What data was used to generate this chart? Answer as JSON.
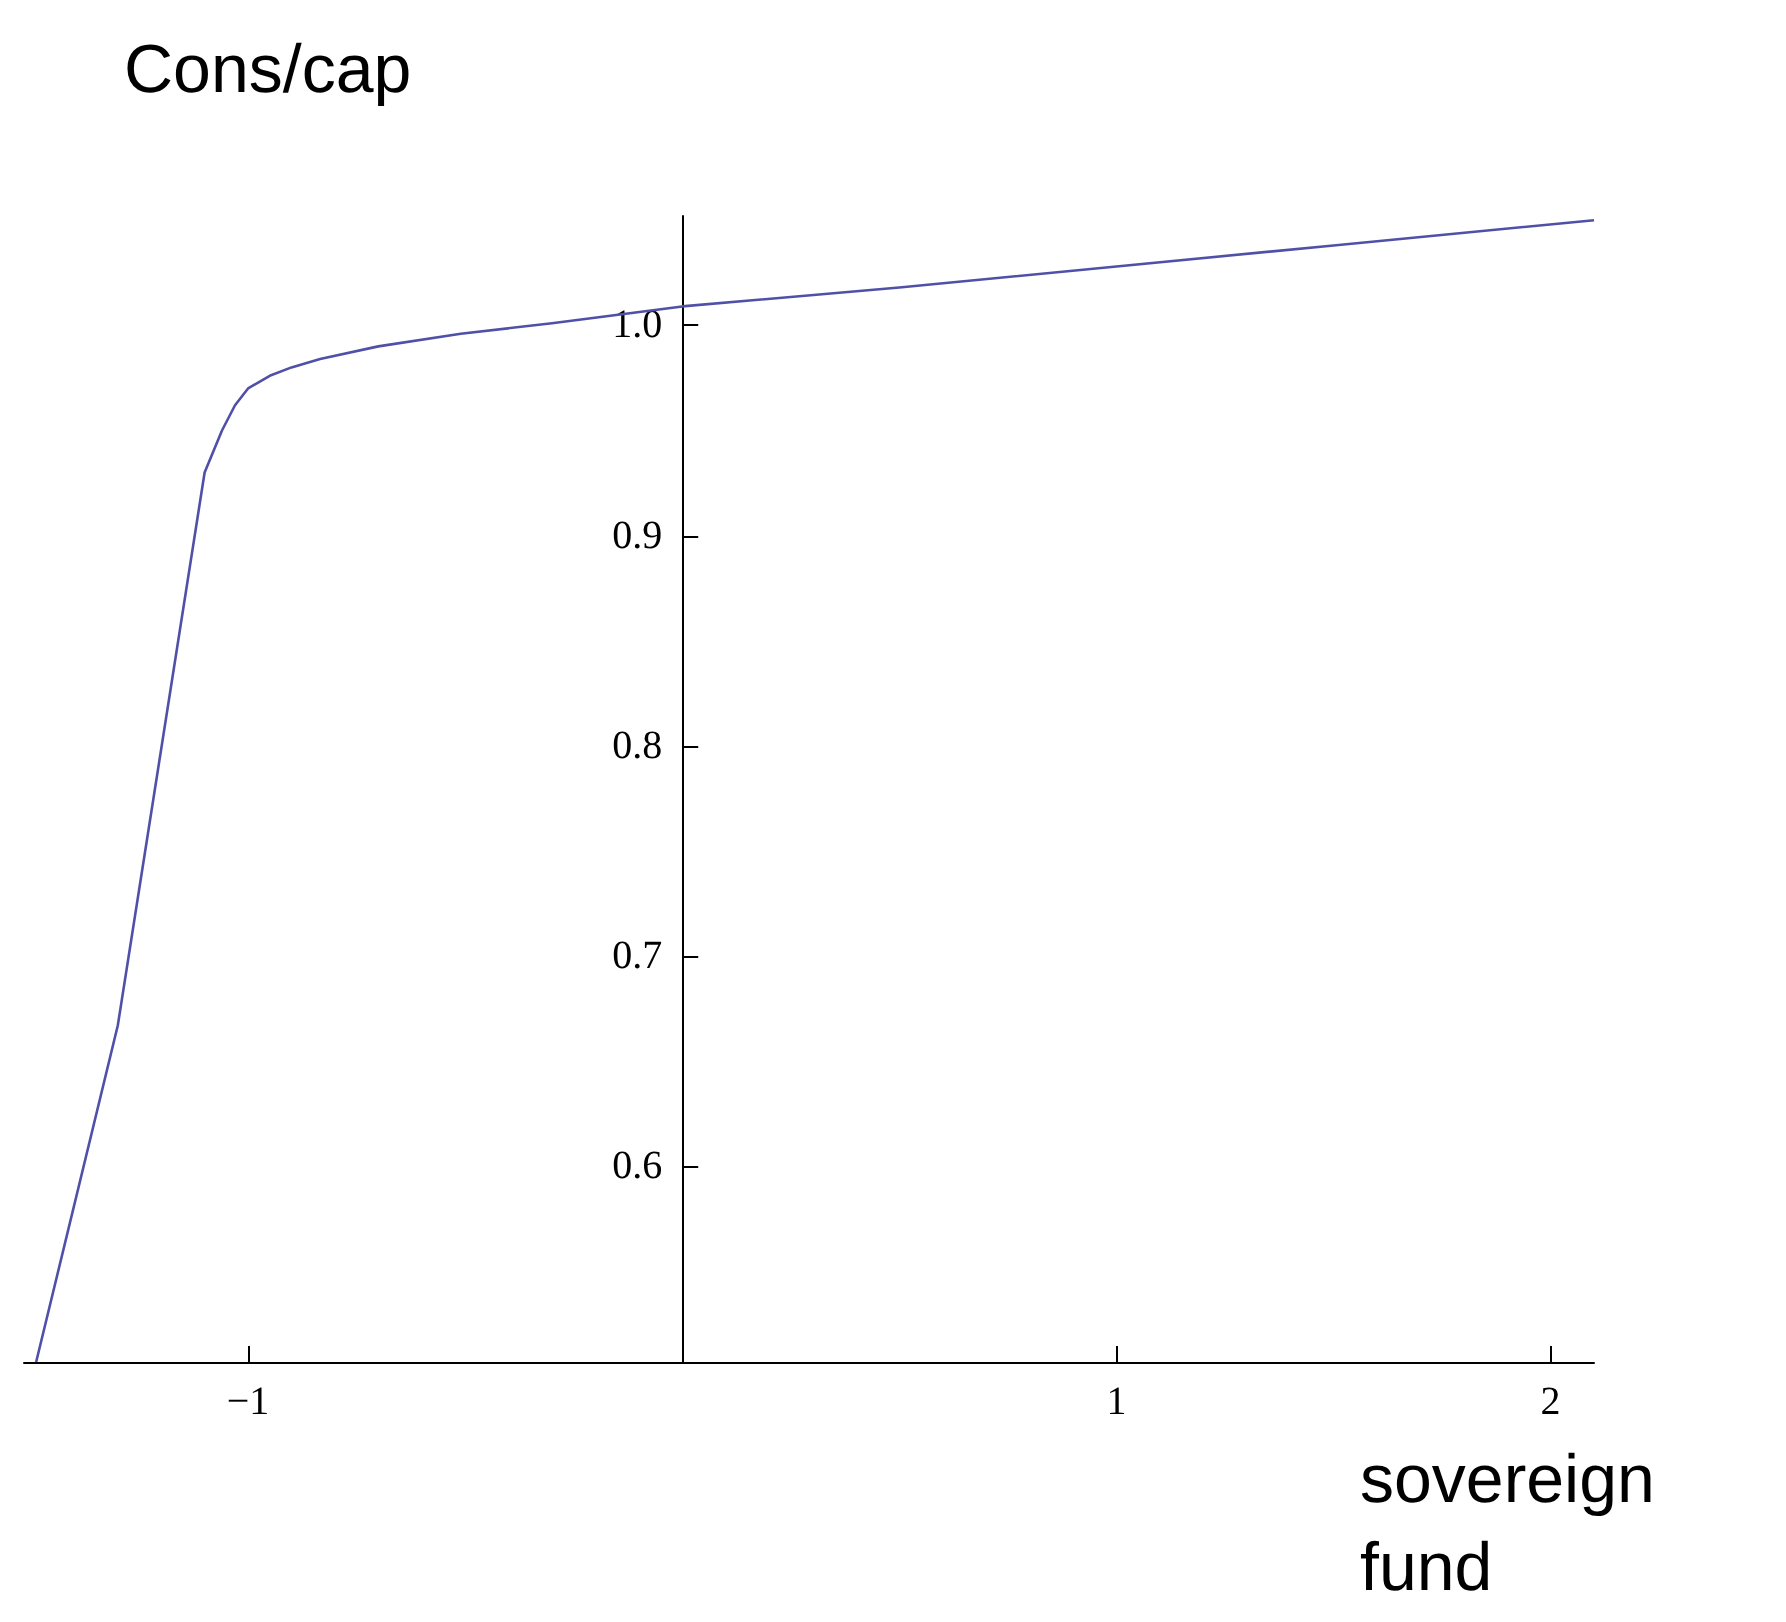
{
  "chart_data": {
    "type": "line",
    "xlabel": "sovereign fund",
    "ylabel": "Cons/cap",
    "xlim": [
      -1.516,
      2.1
    ],
    "ylim": [
      0.507,
      1.052
    ],
    "xticks": [
      -1,
      {
        "value": 0,
        "label": null
      },
      1,
      2
    ],
    "yticks": [
      0.6,
      0.7,
      0.8,
      0.9,
      {
        "value": 1,
        "label": "1.0"
      }
    ],
    "grid": false,
    "marker": "none",
    "line_style": "solid",
    "series": [
      {
        "color": "#5050a8",
        "x": [
          -1.488,
          -1.3,
          -1.1,
          -1.06,
          -1.03,
          -1.0,
          -0.95,
          -0.9,
          -0.834,
          -0.7,
          -0.51,
          -0.3,
          0,
          0.5,
          1,
          1.5,
          2.1
        ],
        "values": [
          0.507,
          0.667,
          0.93,
          0.95,
          0.962,
          0.97,
          0.976,
          0.98,
          0.984,
          0.99,
          0.996,
          1.001,
          1.009,
          1.018,
          1.028,
          1.038,
          1.05
        ]
      }
    ]
  }
}
